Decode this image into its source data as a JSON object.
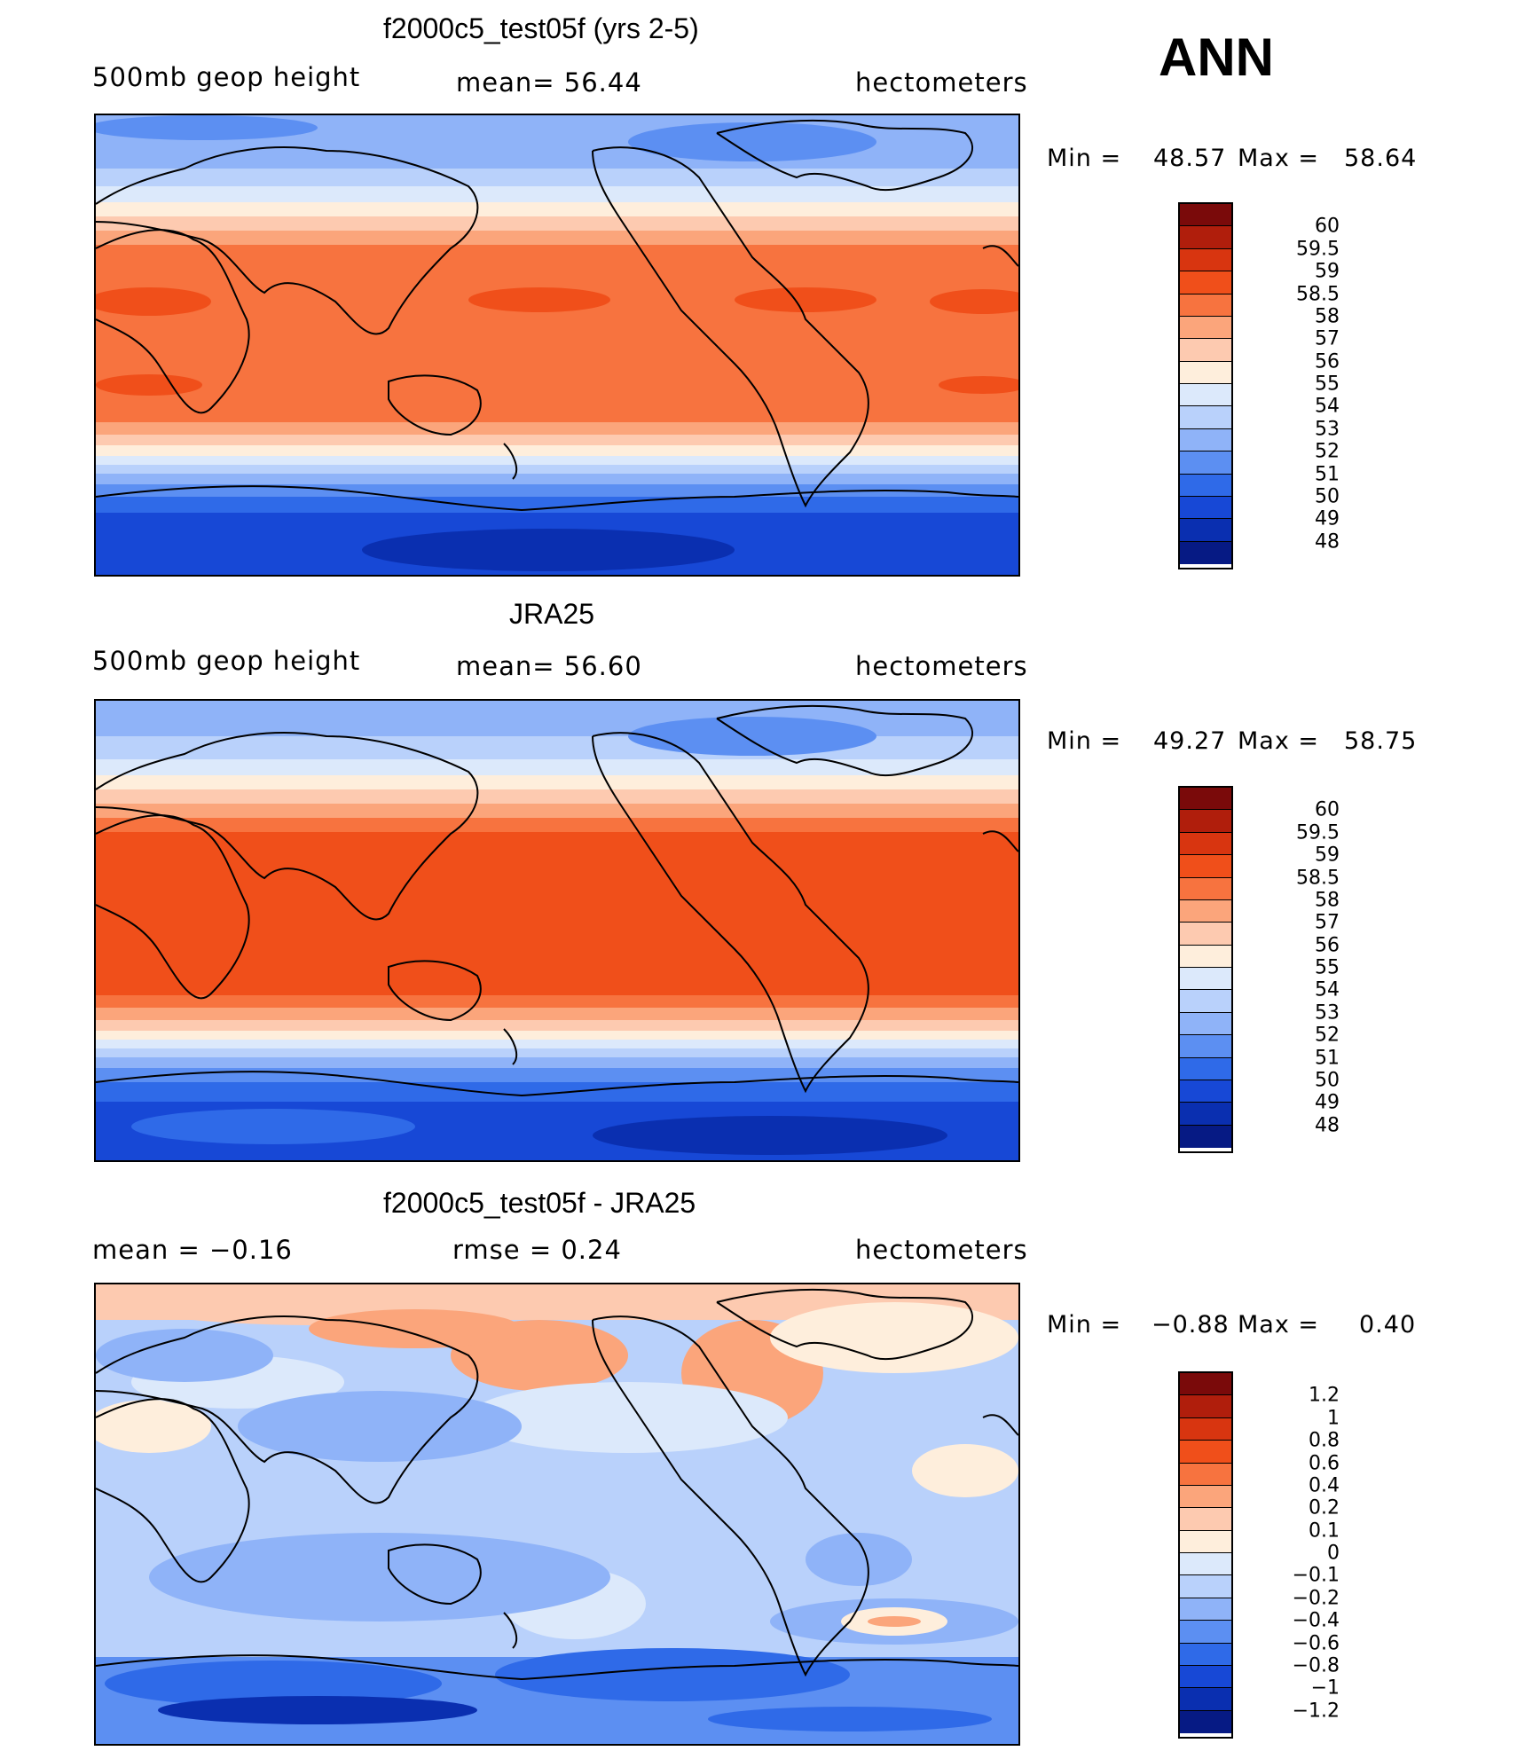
{
  "season": "ANN",
  "panels": [
    {
      "title": "f2000c5_test05f (yrs 2-5)",
      "left_label": "500mb  geop  height",
      "center_label": "mean=   56.44",
      "right_label": "hectometers",
      "min_label": "Min  =",
      "min_value": "48.57",
      "max_label": "Max  =",
      "max_value": "58.64",
      "colorbar": {
        "labels": [
          "60",
          "59.5",
          "59",
          "58.5",
          "58",
          "57",
          "56",
          "55",
          "54",
          "53",
          "52",
          "51",
          "50",
          "49",
          "48"
        ],
        "colors": [
          "#7a0a0a",
          "#b01e0c",
          "#d83510",
          "#f04f1a",
          "#f7733f",
          "#fba57b",
          "#fdcab0",
          "#feeedc",
          "#dce9fb",
          "#b9d1fb",
          "#8fb3f8",
          "#5c8ff2",
          "#2f6ae8",
          "#1748d6",
          "#0a2fb0",
          "#061a84"
        ]
      }
    },
    {
      "title": "JRA25",
      "left_label": "500mb  geop  height",
      "center_label": "mean=   56.60",
      "right_label": "hectometers",
      "min_label": "Min  =",
      "min_value": "49.27",
      "max_label": "Max  =",
      "max_value": "58.75",
      "colorbar": {
        "labels": [
          "60",
          "59.5",
          "59",
          "58.5",
          "58",
          "57",
          "56",
          "55",
          "54",
          "53",
          "52",
          "51",
          "50",
          "49",
          "48"
        ],
        "colors": [
          "#7a0a0a",
          "#b01e0c",
          "#d83510",
          "#f04f1a",
          "#f7733f",
          "#fba57b",
          "#fdcab0",
          "#feeedc",
          "#dce9fb",
          "#b9d1fb",
          "#8fb3f8",
          "#5c8ff2",
          "#2f6ae8",
          "#1748d6",
          "#0a2fb0",
          "#061a84"
        ]
      }
    },
    {
      "title": "f2000c5_test05f - JRA25",
      "left_label": "mean  =    −0.16",
      "center_label": "rmse  =     0.24",
      "right_label": "hectometers",
      "min_label": "Min  =",
      "min_value": "−0.88",
      "max_label": "Max  =",
      "max_value": "0.40",
      "colorbar": {
        "labels": [
          "1.2",
          "1",
          "0.8",
          "0.6",
          "0.4",
          "0.2",
          "0.1",
          "0",
          "−0.1",
          "−0.2",
          "−0.4",
          "−0.6",
          "−0.8",
          "−1",
          "−1.2"
        ],
        "colors": [
          "#7a0a0a",
          "#b01e0c",
          "#d83510",
          "#f04f1a",
          "#f7733f",
          "#fba57b",
          "#fdcab0",
          "#feeedc",
          "#dce9fb",
          "#b9d1fb",
          "#8fb3f8",
          "#5c8ff2",
          "#2f6ae8",
          "#1748d6",
          "#0a2fb0",
          "#061a84"
        ]
      }
    }
  ]
}
